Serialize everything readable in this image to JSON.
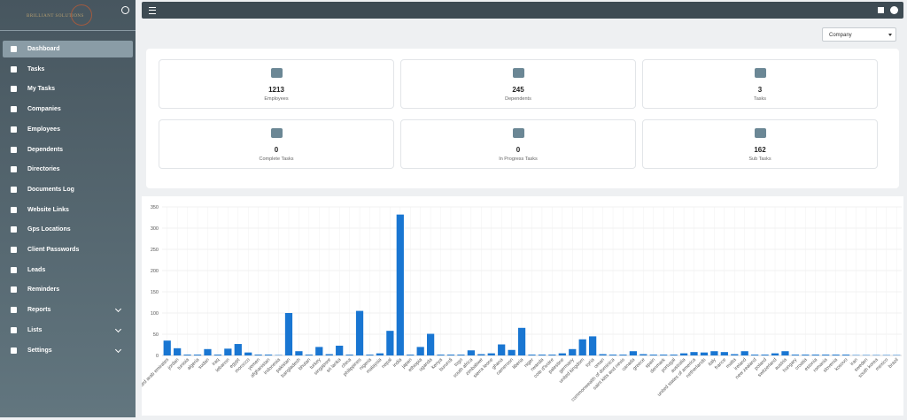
{
  "logo": {
    "text": "BRILLIANT SOLUTIONS"
  },
  "sidebar": {
    "items": [
      {
        "label": "Dashboard",
        "active": true
      },
      {
        "label": "Tasks"
      },
      {
        "label": "My Tasks"
      },
      {
        "label": "Companies"
      },
      {
        "label": "Employees"
      },
      {
        "label": "Dependents"
      },
      {
        "label": "Directories"
      },
      {
        "label": "Documents Log"
      },
      {
        "label": "Website Links"
      },
      {
        "label": "Gps Locations"
      },
      {
        "label": "Client Passwords"
      },
      {
        "label": "Leads"
      },
      {
        "label": "Reminders"
      },
      {
        "label": "Reports",
        "submenu": true
      },
      {
        "label": "Lists",
        "submenu": true
      },
      {
        "label": "Settings",
        "submenu": true
      }
    ]
  },
  "filter": {
    "selected": "Company"
  },
  "cards": [
    {
      "value": 1213,
      "label": "Employees"
    },
    {
      "value": 245,
      "label": "Dependents"
    },
    {
      "value": 3,
      "label": "Tasks"
    },
    {
      "value": 0,
      "label": "Complete Tasks"
    },
    {
      "value": 0,
      "label": "In Progress Tasks"
    },
    {
      "value": 162,
      "label": "Sub Tasks"
    }
  ],
  "chart_data": {
    "type": "bar",
    "color": "#1976d2",
    "grid": true,
    "ylim": [
      0,
      350
    ],
    "yticks": [
      0,
      50,
      100,
      150,
      200,
      250,
      300,
      350
    ],
    "categories": [
      "united arab emirates",
      "jordan",
      "tunisia",
      "algeria",
      "sudan",
      "iraq",
      "lebanon",
      "egypt",
      "morocco",
      "yemen",
      "afghanistan",
      "indonesia",
      "pakistan",
      "bangladesh",
      "bhutan",
      "turkey",
      "singapore",
      "sri lanka",
      "china",
      "philippines",
      "nigeria",
      "malaysia",
      "nepal",
      "india",
      "japan",
      "ethiopia",
      "uganda",
      "kenya",
      "burundi",
      "togo",
      "south africa",
      "zimbabwe",
      "sierra leone",
      "ghana",
      "cameroon",
      "liberia",
      "niger",
      "rwanda",
      "cote d'ivoire",
      "palestine",
      "germany",
      "united kingdom",
      "syria",
      "oman",
      "commonwealth of dominica",
      "saint kitts and nevis",
      "canada",
      "greece",
      "spain",
      "denmark",
      "portugal",
      "australia",
      "united states of america",
      "netherlands",
      "italy",
      "france",
      "malta",
      "ireland",
      "new zealand",
      "poland",
      "switzerland",
      "austria",
      "hungary",
      "croatia",
      "estonia",
      "romania",
      "slovenia",
      "kosovo",
      "iran",
      "sweden",
      "south korea",
      "mexico",
      "brazil"
    ],
    "values": [
      35,
      17,
      2,
      2,
      15,
      2,
      16,
      27,
      7,
      2,
      2,
      1,
      100,
      10,
      2,
      20,
      3,
      23,
      2,
      105,
      2,
      5,
      58,
      332,
      2,
      20,
      51,
      2,
      2,
      2,
      12,
      3,
      5,
      26,
      13,
      65,
      2,
      2,
      2,
      5,
      15,
      38,
      45,
      3,
      2,
      2,
      10,
      3,
      2,
      2,
      2,
      5,
      8,
      7,
      10,
      8,
      3,
      10,
      2,
      2,
      5,
      10,
      2,
      2,
      2,
      2,
      2,
      2,
      1,
      1,
      1,
      1,
      1
    ]
  }
}
